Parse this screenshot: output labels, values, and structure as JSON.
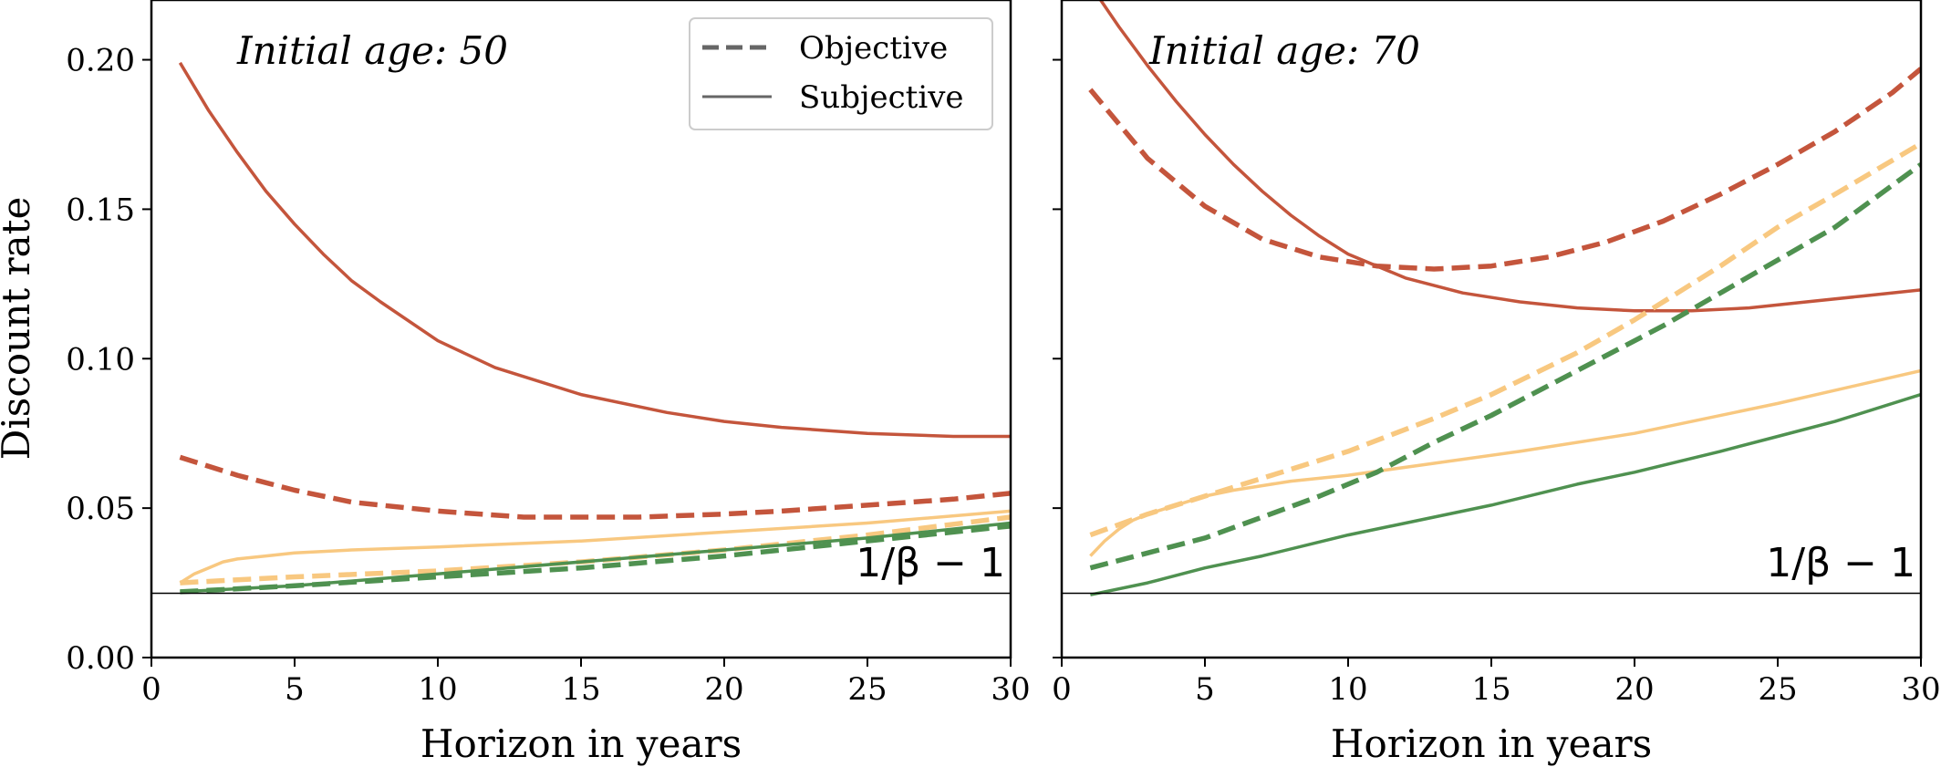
{
  "colors": {
    "red": "#c4553c",
    "orange": "#f8c880",
    "green": "#4f9150",
    "legend_line": "#666666",
    "reference_line": "#000000"
  },
  "chart_data": [
    {
      "type": "line",
      "annotation": "Initial age: 50",
      "xlabel": "Horizon in years",
      "ylabel": "Discount rate",
      "xlim": [
        0,
        30
      ],
      "ylim": [
        0,
        0.22
      ],
      "xticks": [
        "0",
        "5",
        "10",
        "15",
        "20",
        "25",
        "30"
      ],
      "yticks": [
        "0.00",
        "0.05",
        "0.10",
        "0.15",
        "0.20"
      ],
      "reference_line": {
        "y": 0.0215,
        "label": "1/β − 1"
      },
      "legend": {
        "placement": "top-right",
        "entries": [
          {
            "label": "Objective",
            "style": "dashed"
          },
          {
            "label": "Subjective",
            "style": "solid"
          }
        ]
      },
      "series": [
        {
          "color": "red",
          "style": "solid",
          "x": [
            1,
            2,
            3,
            4,
            5,
            6,
            7,
            8,
            10,
            12,
            15,
            18,
            20,
            22,
            25,
            28,
            30
          ],
          "y": [
            0.199,
            0.183,
            0.169,
            0.156,
            0.145,
            0.135,
            0.126,
            0.119,
            0.106,
            0.097,
            0.088,
            0.082,
            0.079,
            0.077,
            0.075,
            0.074,
            0.074
          ]
        },
        {
          "color": "red",
          "style": "dashed",
          "x": [
            1,
            3,
            5,
            7,
            10,
            13,
            15,
            17,
            20,
            22,
            25,
            28,
            30
          ],
          "y": [
            0.067,
            0.061,
            0.056,
            0.052,
            0.049,
            0.047,
            0.047,
            0.047,
            0.048,
            0.049,
            0.051,
            0.053,
            0.055
          ]
        },
        {
          "color": "orange",
          "style": "solid",
          "x": [
            1,
            1.5,
            2,
            2.5,
            3,
            4,
            5,
            7,
            10,
            15,
            20,
            25,
            30
          ],
          "y": [
            0.025,
            0.028,
            0.03,
            0.032,
            0.033,
            0.034,
            0.035,
            0.036,
            0.037,
            0.039,
            0.042,
            0.045,
            0.049
          ]
        },
        {
          "color": "orange",
          "style": "dashed",
          "x": [
            1,
            5,
            10,
            15,
            20,
            25,
            30
          ],
          "y": [
            0.025,
            0.027,
            0.029,
            0.032,
            0.036,
            0.041,
            0.047
          ]
        },
        {
          "color": "green",
          "style": "solid",
          "x": [
            1,
            5,
            10,
            15,
            20,
            25,
            30
          ],
          "y": [
            0.022,
            0.024,
            0.028,
            0.032,
            0.036,
            0.04,
            0.045
          ]
        },
        {
          "color": "green",
          "style": "dashed",
          "x": [
            1,
            5,
            10,
            15,
            20,
            25,
            30
          ],
          "y": [
            0.022,
            0.024,
            0.027,
            0.03,
            0.034,
            0.039,
            0.044
          ]
        }
      ]
    },
    {
      "type": "line",
      "annotation": "Initial age: 70",
      "xlabel": "Horizon in years",
      "ylabel": "",
      "xlim": [
        0,
        30
      ],
      "ylim": [
        0,
        0.22
      ],
      "xticks": [
        "0",
        "5",
        "10",
        "15",
        "20",
        "25",
        "30"
      ],
      "yticks": [],
      "reference_line": {
        "y": 0.0215,
        "label": "1/β − 1"
      },
      "series": [
        {
          "color": "red",
          "style": "solid",
          "x": [
            1,
            2,
            3,
            4,
            5,
            6,
            7,
            8,
            9,
            10,
            12,
            14,
            16,
            18,
            20,
            22,
            24,
            26,
            28,
            30
          ],
          "y": [
            0.225,
            0.211,
            0.198,
            0.186,
            0.175,
            0.165,
            0.156,
            0.148,
            0.141,
            0.135,
            0.127,
            0.122,
            0.119,
            0.117,
            0.116,
            0.116,
            0.117,
            0.119,
            0.121,
            0.123
          ]
        },
        {
          "color": "red",
          "style": "dashed",
          "x": [
            1,
            3,
            5,
            7,
            9,
            11,
            13,
            15,
            17,
            19,
            21,
            23,
            25,
            27,
            29,
            30
          ],
          "y": [
            0.19,
            0.167,
            0.151,
            0.14,
            0.134,
            0.131,
            0.13,
            0.131,
            0.134,
            0.139,
            0.146,
            0.155,
            0.165,
            0.176,
            0.189,
            0.197
          ]
        },
        {
          "color": "orange",
          "style": "solid",
          "x": [
            1,
            1.5,
            2,
            2.5,
            3,
            4,
            5,
            6,
            8,
            10,
            13,
            16,
            20,
            25,
            30
          ],
          "y": [
            0.034,
            0.039,
            0.043,
            0.046,
            0.048,
            0.051,
            0.054,
            0.056,
            0.059,
            0.061,
            0.065,
            0.069,
            0.075,
            0.085,
            0.096
          ]
        },
        {
          "color": "orange",
          "style": "dashed",
          "x": [
            1,
            3,
            5,
            7,
            10,
            13,
            15,
            18,
            20,
            23,
            25,
            27,
            30
          ],
          "y": [
            0.041,
            0.048,
            0.054,
            0.06,
            0.069,
            0.08,
            0.088,
            0.102,
            0.113,
            0.131,
            0.144,
            0.155,
            0.172
          ]
        },
        {
          "color": "green",
          "style": "solid",
          "x": [
            1,
            3,
            5,
            7,
            10,
            13,
            15,
            18,
            20,
            23,
            25,
            27,
            30
          ],
          "y": [
            0.021,
            0.025,
            0.03,
            0.034,
            0.041,
            0.047,
            0.051,
            0.058,
            0.062,
            0.069,
            0.074,
            0.079,
            0.088
          ]
        },
        {
          "color": "green",
          "style": "dashed",
          "x": [
            1,
            3,
            5,
            7,
            9,
            11,
            13,
            15,
            17,
            19,
            21,
            23,
            25,
            27,
            30
          ],
          "y": [
            0.03,
            0.035,
            0.04,
            0.047,
            0.054,
            0.062,
            0.072,
            0.081,
            0.091,
            0.101,
            0.111,
            0.122,
            0.133,
            0.144,
            0.165
          ]
        }
      ]
    }
  ]
}
